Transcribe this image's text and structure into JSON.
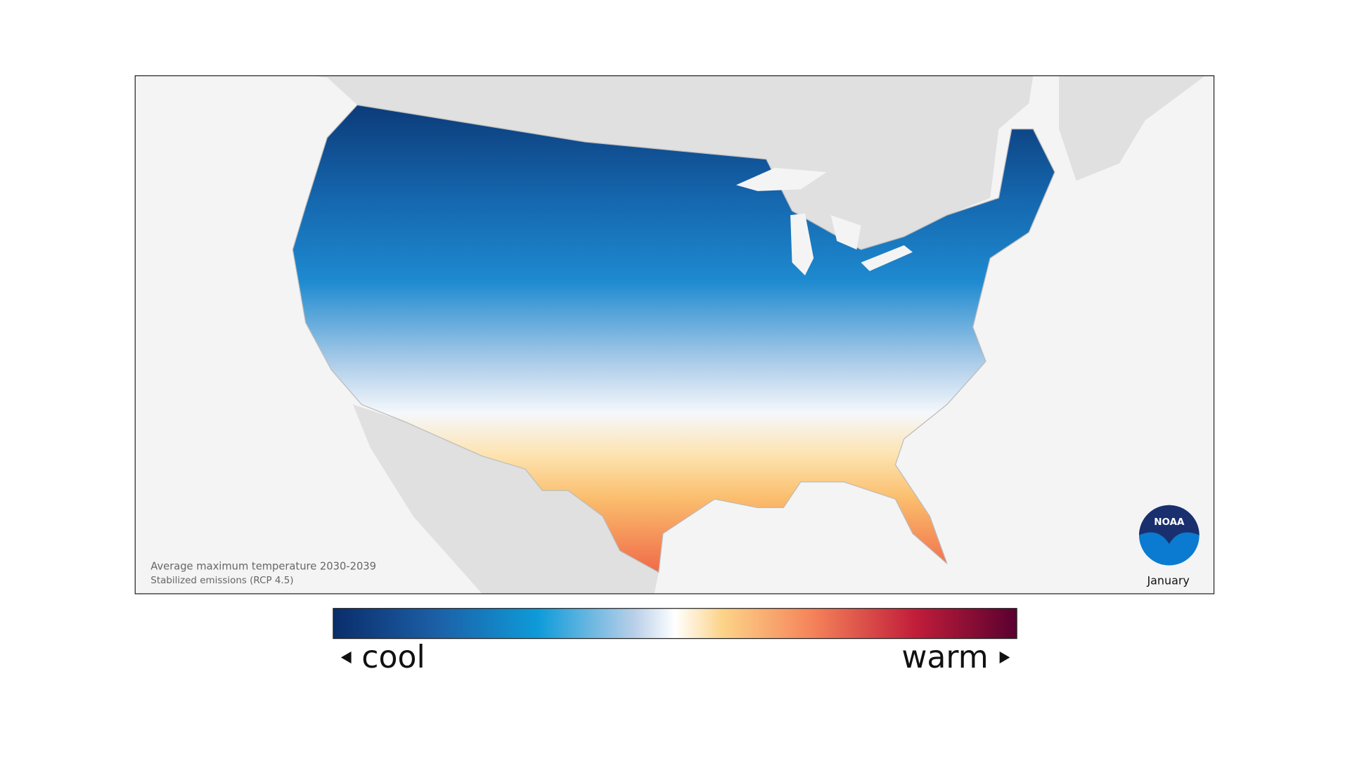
{
  "map": {
    "caption": [
      "Average maximum temperature 2030-2039",
      "Stabilized emissions (RCP 4.5)"
    ],
    "month": "January",
    "logo": "NOAA",
    "legend": {
      "low": "cool",
      "high": "warm"
    }
  }
}
